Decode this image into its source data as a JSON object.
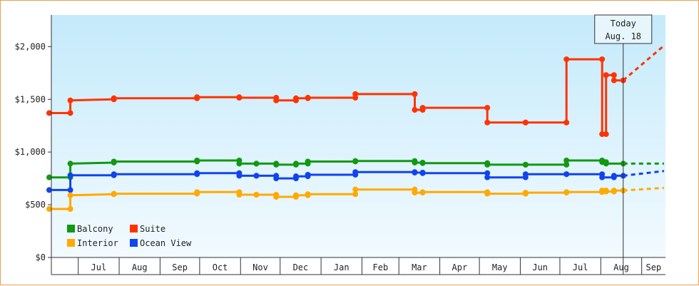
{
  "chart_data": {
    "type": "line",
    "step": true,
    "x_start": "2024-06-09",
    "y_range": [
      0,
      2300
    ],
    "y_ticks": [
      0,
      500,
      1000,
      1500,
      2000
    ],
    "y_tick_labels": [
      "$0",
      "$500",
      "$1,000",
      "$1,500",
      "$2,000"
    ],
    "x_month_labels": [
      "Jul",
      "Aug",
      "Sep",
      "Oct",
      "Nov",
      "Dec",
      "Jan",
      "Feb",
      "Mar",
      "Apr",
      "May",
      "Jun",
      "Jul",
      "Aug",
      "Sep"
    ],
    "today_label": "Today",
    "today_date": "Aug. 18",
    "today_x": "2025-08-18",
    "background": "gradient light blue",
    "legend_position": "bottom-left",
    "series": [
      {
        "name": "Suite",
        "color": "#ff3300",
        "points": [
          [
            "2024-06-09",
            1370
          ],
          [
            "2024-06-25",
            1370
          ],
          [
            "2024-06-25",
            1490
          ],
          [
            "2024-07-28",
            1500
          ],
          [
            "2024-07-28",
            1510
          ],
          [
            "2024-09-29",
            1510
          ],
          [
            "2024-09-29",
            1520
          ],
          [
            "2024-10-31",
            1520
          ],
          [
            "2024-10-31",
            1515
          ],
          [
            "2024-11-28",
            1515
          ],
          [
            "2024-11-28",
            1490
          ],
          [
            "2024-12-13",
            1490
          ],
          [
            "2024-12-13",
            1510
          ],
          [
            "2024-12-22",
            1510
          ],
          [
            "2024-12-22",
            1515
          ],
          [
            "2025-01-27",
            1515
          ],
          [
            "2025-01-27",
            1550
          ],
          [
            "2025-03-13",
            1550
          ],
          [
            "2025-03-13",
            1400
          ],
          [
            "2025-03-19",
            1400
          ],
          [
            "2025-03-19",
            1420
          ],
          [
            "2025-05-07",
            1420
          ],
          [
            "2025-05-07",
            1280
          ],
          [
            "2025-06-05",
            1280
          ],
          [
            "2025-06-05",
            1280
          ],
          [
            "2025-07-06",
            1280
          ],
          [
            "2025-07-06",
            1880
          ],
          [
            "2025-08-02",
            1880
          ],
          [
            "2025-08-02",
            1170
          ],
          [
            "2025-08-05",
            1170
          ],
          [
            "2025-08-05",
            1730
          ],
          [
            "2025-08-11",
            1730
          ],
          [
            "2025-08-11",
            1680
          ],
          [
            "2025-08-18",
            1680
          ]
        ],
        "projection": [
          [
            "2025-08-18",
            1680
          ],
          [
            "2025-09-30",
            2010
          ]
        ]
      },
      {
        "name": "Balcony",
        "color": "#119911",
        "points": [
          [
            "2024-06-09",
            760
          ],
          [
            "2024-06-25",
            760
          ],
          [
            "2024-06-25",
            890
          ],
          [
            "2024-07-28",
            900
          ],
          [
            "2024-07-28",
            910
          ],
          [
            "2024-09-29",
            910
          ],
          [
            "2024-09-29",
            920
          ],
          [
            "2024-10-31",
            920
          ],
          [
            "2024-10-31",
            890
          ],
          [
            "2024-11-13",
            890
          ],
          [
            "2024-11-13",
            890
          ],
          [
            "2024-11-28",
            890
          ],
          [
            "2024-11-28",
            880
          ],
          [
            "2024-12-13",
            880
          ],
          [
            "2024-12-13",
            890
          ],
          [
            "2024-12-22",
            890
          ],
          [
            "2024-12-22",
            910
          ],
          [
            "2025-01-27",
            910
          ],
          [
            "2025-01-27",
            915
          ],
          [
            "2025-03-13",
            915
          ],
          [
            "2025-03-13",
            900
          ],
          [
            "2025-03-19",
            900
          ],
          [
            "2025-03-19",
            895
          ],
          [
            "2025-05-07",
            895
          ],
          [
            "2025-05-07",
            880
          ],
          [
            "2025-06-05",
            880
          ],
          [
            "2025-06-05",
            880
          ],
          [
            "2025-07-06",
            880
          ],
          [
            "2025-07-06",
            920
          ],
          [
            "2025-08-02",
            920
          ],
          [
            "2025-08-02",
            905
          ],
          [
            "2025-08-05",
            905
          ],
          [
            "2025-08-05",
            890
          ],
          [
            "2025-08-18",
            890
          ]
        ],
        "projection": [
          [
            "2025-08-18",
            890
          ],
          [
            "2025-09-30",
            890
          ]
        ]
      },
      {
        "name": "Ocean View",
        "color": "#1144ee",
        "points": [
          [
            "2024-06-09",
            640
          ],
          [
            "2024-06-25",
            640
          ],
          [
            "2024-06-25",
            780
          ],
          [
            "2024-07-28",
            780
          ],
          [
            "2024-07-28",
            790
          ],
          [
            "2024-09-29",
            790
          ],
          [
            "2024-09-29",
            800
          ],
          [
            "2024-10-31",
            800
          ],
          [
            "2024-10-31",
            775
          ],
          [
            "2024-11-13",
            775
          ],
          [
            "2024-11-13",
            775
          ],
          [
            "2024-11-28",
            775
          ],
          [
            "2024-11-28",
            750
          ],
          [
            "2024-12-13",
            750
          ],
          [
            "2024-12-13",
            770
          ],
          [
            "2024-12-22",
            770
          ],
          [
            "2024-12-22",
            785
          ],
          [
            "2025-01-27",
            785
          ],
          [
            "2025-01-27",
            810
          ],
          [
            "2025-03-13",
            810
          ],
          [
            "2025-03-13",
            805
          ],
          [
            "2025-03-19",
            805
          ],
          [
            "2025-03-19",
            800
          ],
          [
            "2025-05-07",
            800
          ],
          [
            "2025-05-07",
            760
          ],
          [
            "2025-06-05",
            760
          ],
          [
            "2025-06-05",
            790
          ],
          [
            "2025-07-06",
            790
          ],
          [
            "2025-07-06",
            790
          ],
          [
            "2025-08-02",
            790
          ],
          [
            "2025-08-02",
            760
          ],
          [
            "2025-08-11",
            760
          ],
          [
            "2025-08-11",
            775
          ],
          [
            "2025-08-18",
            775
          ]
        ],
        "projection": [
          [
            "2025-08-18",
            775
          ],
          [
            "2025-09-30",
            820
          ]
        ]
      },
      {
        "name": "Interior",
        "color": "#ffaa00",
        "points": [
          [
            "2024-06-09",
            460
          ],
          [
            "2024-06-25",
            460
          ],
          [
            "2024-06-25",
            590
          ],
          [
            "2024-07-28",
            600
          ],
          [
            "2024-07-28",
            605
          ],
          [
            "2024-09-29",
            605
          ],
          [
            "2024-09-29",
            620
          ],
          [
            "2024-10-31",
            620
          ],
          [
            "2024-10-31",
            595
          ],
          [
            "2024-11-13",
            595
          ],
          [
            "2024-11-13",
            595
          ],
          [
            "2024-11-28",
            595
          ],
          [
            "2024-11-28",
            575
          ],
          [
            "2024-12-13",
            575
          ],
          [
            "2024-12-13",
            590
          ],
          [
            "2024-12-22",
            590
          ],
          [
            "2024-12-22",
            600
          ],
          [
            "2025-01-27",
            600
          ],
          [
            "2025-01-27",
            645
          ],
          [
            "2025-03-13",
            645
          ],
          [
            "2025-03-13",
            615
          ],
          [
            "2025-03-19",
            615
          ],
          [
            "2025-03-19",
            620
          ],
          [
            "2025-05-07",
            620
          ],
          [
            "2025-05-07",
            605
          ],
          [
            "2025-06-05",
            605
          ],
          [
            "2025-06-05",
            615
          ],
          [
            "2025-07-06",
            615
          ],
          [
            "2025-07-06",
            620
          ],
          [
            "2025-08-02",
            620
          ],
          [
            "2025-08-02",
            635
          ],
          [
            "2025-08-05",
            635
          ],
          [
            "2025-08-05",
            625
          ],
          [
            "2025-08-11",
            625
          ],
          [
            "2025-08-11",
            635
          ],
          [
            "2025-08-18",
            635
          ]
        ],
        "projection": [
          [
            "2025-08-18",
            635
          ],
          [
            "2025-09-30",
            660
          ]
        ]
      }
    ],
    "legend": [
      {
        "name": "Balcony",
        "color": "#119911"
      },
      {
        "name": "Suite",
        "color": "#ff3300"
      },
      {
        "name": "Interior",
        "color": "#ffaa00"
      },
      {
        "name": "Ocean View",
        "color": "#1144ee"
      }
    ]
  }
}
